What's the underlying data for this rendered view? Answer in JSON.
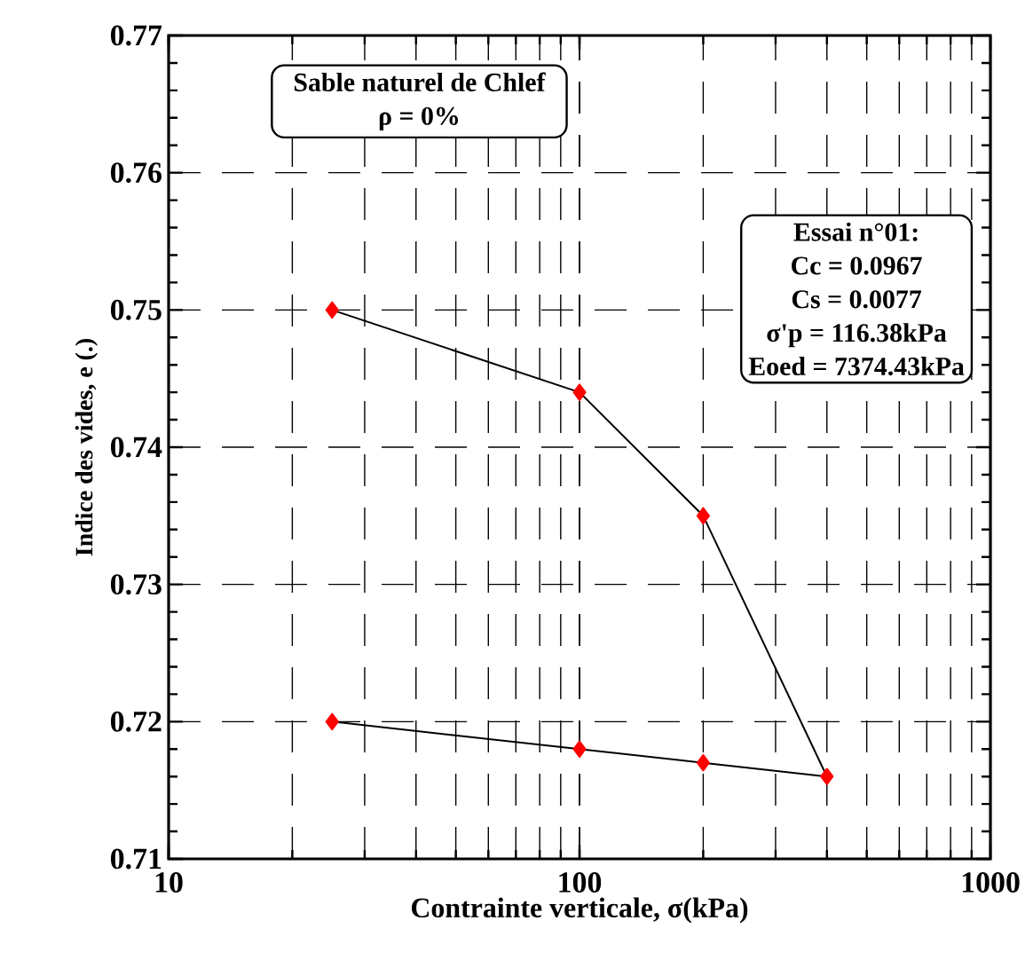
{
  "chart_data": {
    "type": "line",
    "xlabel": "Contrainte verticale, σ(kPa)",
    "ylabel": "Indice des vides, e (.)",
    "x": [
      25,
      100,
      200,
      400,
      200,
      100,
      25
    ],
    "series": [
      {
        "color": "#ff0000",
        "values": [
          0.75,
          0.744,
          0.735,
          0.716,
          0.717,
          0.718,
          0.72
        ]
      }
    ],
    "log": "x",
    "xlim": [
      10,
      1000
    ],
    "xticks": [
      10,
      100,
      1000
    ],
    "ylim": [
      0.71,
      0.77
    ],
    "yticks": [
      0.71,
      0.72,
      0.73,
      0.74,
      0.75,
      0.76,
      0.77
    ],
    "grid": true,
    "marker": "diamond",
    "line_style": "solid",
    "annotations": [
      "Sable naturel de Chlef",
      "ρ = 0%",
      "Essai n°01:",
      "Cc = 0.0967",
      "Cs = 0.0077",
      "σ'p = 116.38kPa",
      "Eoed = 7374.43kPa"
    ]
  }
}
